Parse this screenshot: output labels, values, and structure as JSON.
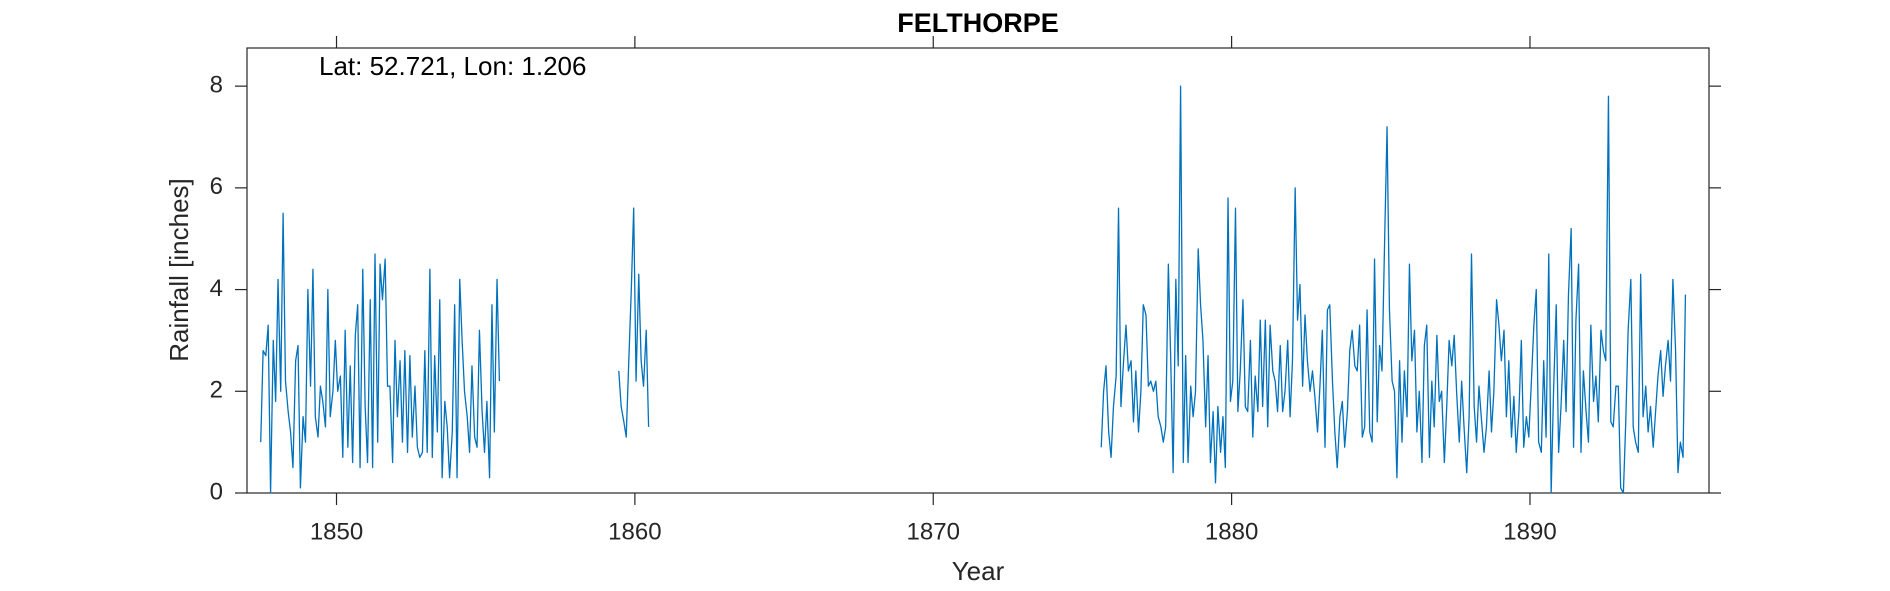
{
  "chart_data": {
    "type": "line",
    "title": "FELTHORPE",
    "annotation": "Lat: 52.721, Lon: 1.206",
    "x_label": "Year",
    "y_label": "Rainfall [inches]",
    "color": "#0072bd",
    "xlim": [
      1847,
      1896
    ],
    "ylim": [
      0,
      8.75
    ],
    "xticks": [
      1850,
      1860,
      1870,
      1880,
      1890
    ],
    "yticks": [
      0,
      2,
      4,
      6,
      8
    ],
    "x": [
      1847.46,
      1847.54,
      1847.63,
      1847.71,
      1847.79,
      1847.88,
      1847.96,
      1848.04,
      1848.13,
      1848.21,
      1848.29,
      1848.38,
      1848.46,
      1848.54,
      1848.63,
      1848.71,
      1848.79,
      1848.88,
      1848.96,
      1849.04,
      1849.13,
      1849.21,
      1849.29,
      1849.38,
      1849.46,
      1849.54,
      1849.63,
      1849.71,
      1849.79,
      1849.88,
      1849.96,
      1850.04,
      1850.13,
      1850.21,
      1850.29,
      1850.38,
      1850.46,
      1850.54,
      1850.63,
      1850.71,
      1850.79,
      1850.88,
      1850.96,
      1851.04,
      1851.13,
      1851.21,
      1851.29,
      1851.38,
      1851.46,
      1851.54,
      1851.63,
      1851.71,
      1851.79,
      1851.88,
      1851.96,
      1852.04,
      1852.13,
      1852.21,
      1852.29,
      1852.38,
      1852.46,
      1852.54,
      1852.63,
      1852.71,
      1852.79,
      1852.88,
      1852.96,
      1853.04,
      1853.13,
      1853.21,
      1853.29,
      1853.38,
      1853.46,
      1853.54,
      1853.63,
      1853.71,
      1853.79,
      1853.88,
      1853.96,
      1854.04,
      1854.13,
      1854.21,
      1854.29,
      1854.38,
      1854.46,
      1854.54,
      1854.63,
      1854.71,
      1854.79,
      1854.88,
      1854.96,
      1855.04,
      1855.13,
      1855.21,
      1855.29,
      1855.38,
      1855.46,
      1857.5,
      1859.46,
      1859.54,
      1859.63,
      1859.71,
      1859.79,
      1859.88,
      1859.96,
      1860.04,
      1860.13,
      1860.21,
      1860.29,
      1860.38,
      1860.46,
      1868,
      1875.63,
      1875.71,
      1875.79,
      1875.88,
      1875.96,
      1876.04,
      1876.13,
      1876.21,
      1876.29,
      1876.38,
      1876.46,
      1876.54,
      1876.63,
      1876.71,
      1876.79,
      1876.88,
      1876.96,
      1877.04,
      1877.13,
      1877.21,
      1877.29,
      1877.38,
      1877.46,
      1877.54,
      1877.63,
      1877.71,
      1877.79,
      1877.88,
      1877.96,
      1878.04,
      1878.13,
      1878.21,
      1878.29,
      1878.38,
      1878.46,
      1878.54,
      1878.63,
      1878.71,
      1878.79,
      1878.88,
      1878.96,
      1879.04,
      1879.13,
      1879.21,
      1879.29,
      1879.38,
      1879.46,
      1879.54,
      1879.63,
      1879.71,
      1879.79,
      1879.88,
      1879.96,
      1880.04,
      1880.13,
      1880.21,
      1880.29,
      1880.38,
      1880.46,
      1880.54,
      1880.63,
      1880.71,
      1880.79,
      1880.88,
      1880.96,
      1881.04,
      1881.13,
      1881.21,
      1881.29,
      1881.38,
      1881.46,
      1881.54,
      1881.63,
      1881.71,
      1881.79,
      1881.88,
      1881.96,
      1882.04,
      1882.13,
      1882.21,
      1882.29,
      1882.38,
      1882.46,
      1882.54,
      1882.63,
      1882.71,
      1882.79,
      1882.88,
      1882.96,
      1883.04,
      1883.13,
      1883.21,
      1883.29,
      1883.38,
      1883.46,
      1883.54,
      1883.63,
      1883.71,
      1883.79,
      1883.88,
      1883.96,
      1884.04,
      1884.13,
      1884.21,
      1884.29,
      1884.38,
      1884.46,
      1884.54,
      1884.63,
      1884.71,
      1884.79,
      1884.88,
      1884.96,
      1885.04,
      1885.13,
      1885.21,
      1885.29,
      1885.38,
      1885.46,
      1885.54,
      1885.63,
      1885.71,
      1885.79,
      1885.88,
      1885.96,
      1886.04,
      1886.13,
      1886.21,
      1886.29,
      1886.38,
      1886.46,
      1886.54,
      1886.63,
      1886.71,
      1886.79,
      1886.88,
      1886.96,
      1887.04,
      1887.13,
      1887.21,
      1887.29,
      1887.38,
      1887.46,
      1887.54,
      1887.63,
      1887.71,
      1887.79,
      1887.88,
      1887.96,
      1888.04,
      1888.13,
      1888.21,
      1888.29,
      1888.38,
      1888.46,
      1888.54,
      1888.63,
      1888.71,
      1888.79,
      1888.88,
      1888.96,
      1889.04,
      1889.13,
      1889.21,
      1889.29,
      1889.38,
      1889.46,
      1889.54,
      1889.63,
      1889.71,
      1889.79,
      1889.88,
      1889.96,
      1890.04,
      1890.13,
      1890.21,
      1890.29,
      1890.38,
      1890.46,
      1890.54,
      1890.63,
      1890.71,
      1890.79,
      1890.88,
      1890.96,
      1891.04,
      1891.13,
      1891.21,
      1891.29,
      1891.38,
      1891.46,
      1891.54,
      1891.63,
      1891.71,
      1891.79,
      1891.88,
      1891.96,
      1892.04,
      1892.13,
      1892.21,
      1892.29,
      1892.38,
      1892.46,
      1892.54,
      1892.63,
      1892.71,
      1892.79,
      1892.88,
      1892.96,
      1893.04,
      1893.13,
      1893.21,
      1893.29,
      1893.38,
      1893.46,
      1893.54,
      1893.63,
      1893.71,
      1893.79,
      1893.88,
      1893.96,
      1894.04,
      1894.13,
      1894.21,
      1894.29,
      1894.38,
      1894.46,
      1894.54,
      1894.63,
      1894.71,
      1894.79,
      1894.88,
      1894.96,
      1895.04,
      1895.13,
      1895.21
    ],
    "values": [
      1.0,
      2.8,
      2.7,
      3.3,
      0.0,
      3.0,
      1.8,
      4.2,
      2.0,
      5.5,
      2.2,
      1.6,
      1.2,
      0.5,
      2.6,
      2.9,
      0.1,
      1.5,
      1.0,
      4.0,
      2.1,
      4.4,
      1.5,
      1.1,
      2.1,
      1.8,
      1.3,
      4.0,
      1.5,
      2.0,
      3.0,
      2.0,
      2.3,
      0.7,
      3.2,
      0.9,
      2.5,
      0.6,
      3.1,
      3.7,
      0.5,
      4.4,
      1.7,
      0.6,
      3.8,
      0.5,
      4.7,
      1.0,
      4.5,
      3.8,
      4.6,
      2.1,
      2.1,
      0.6,
      3.0,
      1.5,
      2.6,
      1.0,
      2.8,
      0.8,
      2.7,
      1.1,
      2.1,
      0.9,
      0.7,
      0.8,
      2.8,
      0.8,
      4.4,
      0.7,
      2.7,
      1.2,
      3.8,
      0.3,
      1.8,
      1.3,
      0.3,
      1.2,
      3.7,
      0.3,
      4.2,
      3.0,
      2.0,
      1.5,
      0.8,
      2.5,
      1.1,
      0.9,
      3.2,
      1.6,
      0.8,
      1.8,
      0.3,
      3.7,
      1.2,
      4.2,
      2.2,
      null,
      2.4,
      1.7,
      1.4,
      1.1,
      2.5,
      4.0,
      5.6,
      2.2,
      4.3,
      2.6,
      2.1,
      3.2,
      1.3,
      null,
      0.9,
      2.0,
      2.5,
      1.2,
      0.7,
      1.7,
      2.3,
      5.6,
      1.7,
      2.6,
      3.3,
      2.4,
      2.6,
      1.4,
      2.4,
      1.2,
      2.0,
      3.7,
      3.5,
      2.1,
      2.2,
      2.0,
      2.2,
      1.5,
      1.3,
      1.0,
      1.3,
      4.5,
      2.6,
      0.4,
      4.2,
      2.5,
      8.0,
      0.6,
      2.7,
      0.6,
      2.1,
      1.5,
      2.0,
      4.8,
      3.7,
      3.0,
      1.3,
      2.7,
      0.6,
      1.6,
      0.2,
      1.7,
      0.8,
      1.5,
      0.5,
      5.8,
      1.8,
      2.2,
      5.6,
      1.6,
      2.4,
      3.8,
      1.7,
      1.6,
      3.0,
      1.1,
      2.3,
      1.6,
      3.4,
      1.7,
      3.4,
      1.3,
      3.3,
      2.4,
      2.2,
      1.6,
      2.9,
      1.6,
      2.0,
      3.0,
      1.5,
      2.6,
      6.0,
      3.4,
      4.1,
      2.1,
      3.5,
      2.6,
      2.0,
      2.4,
      1.9,
      1.2,
      2.1,
      3.2,
      0.9,
      3.6,
      3.7,
      2.2,
      1.2,
      0.5,
      1.5,
      1.8,
      0.9,
      1.6,
      2.8,
      3.2,
      2.5,
      2.4,
      3.3,
      1.1,
      1.3,
      3.6,
      1.2,
      1.0,
      4.6,
      1.4,
      2.9,
      2.4,
      5.0,
      7.2,
      3.6,
      2.2,
      2.0,
      0.3,
      2.6,
      1.0,
      2.4,
      1.5,
      4.5,
      2.6,
      3.2,
      1.2,
      2.0,
      0.6,
      2.9,
      3.3,
      0.7,
      2.2,
      1.3,
      3.1,
      1.8,
      2.0,
      0.6,
      1.7,
      3.0,
      2.5,
      3.1,
      2.0,
      1.0,
      2.2,
      1.3,
      0.4,
      1.5,
      4.7,
      1.7,
      1.0,
      2.1,
      1.4,
      0.8,
      1.3,
      2.4,
      1.2,
      2.0,
      3.8,
      3.3,
      2.6,
      3.2,
      1.5,
      2.6,
      1.1,
      1.9,
      0.8,
      1.6,
      3.0,
      0.9,
      1.5,
      1.1,
      2.1,
      3.3,
      4.0,
      1.0,
      0.8,
      2.6,
      1.1,
      4.7,
      0.0,
      2.0,
      3.7,
      0.8,
      1.7,
      3.0,
      1.6,
      3.9,
      5.2,
      0.9,
      3.4,
      4.5,
      0.8,
      2.4,
      1.6,
      1.0,
      3.3,
      1.8,
      2.3,
      1.4,
      3.2,
      2.8,
      2.6,
      7.8,
      1.4,
      1.3,
      2.1,
      2.1,
      0.1,
      0.0,
      1.4,
      3.2,
      4.2,
      1.3,
      1.0,
      0.8,
      4.3,
      1.5,
      2.1,
      1.2,
      1.7,
      0.9,
      1.6,
      2.3,
      2.8,
      1.9,
      2.5,
      3.0,
      2.2,
      4.2,
      2.8,
      0.4,
      1.0,
      0.7,
      3.9
    ]
  }
}
